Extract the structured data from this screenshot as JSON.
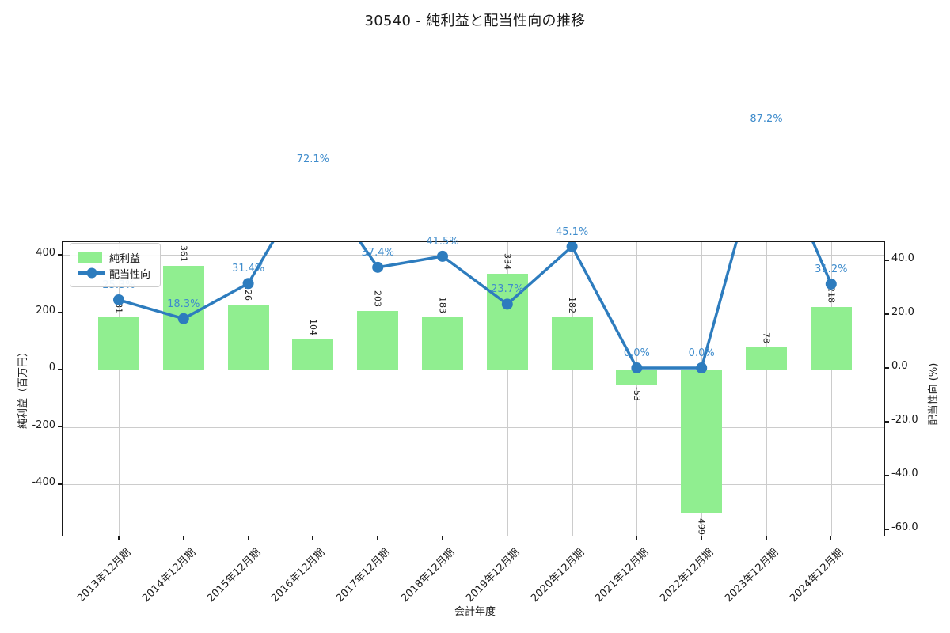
{
  "title": "30540 - 純利益と配当性向の推移",
  "xlabel": "会計年度",
  "ylabel_left": "純利益（百万円）",
  "ylabel_right": "配当性向 (%)",
  "legend": {
    "items": [
      {
        "label": "純利益",
        "marker": "bar-swatch"
      },
      {
        "label": "配当性向",
        "marker": "line-dot"
      }
    ]
  },
  "colors": {
    "bar": "#90ee90",
    "line": "#2d7cbe",
    "pct_text": "#3f8ccc",
    "grid": "#cccccc",
    "spine": "#1a1a1a"
  },
  "chart_data": {
    "type": "bar",
    "title": "30540 - 純利益と配当性向の推移",
    "xlabel": "会計年度",
    "categories": [
      "2013年12月期",
      "2014年12月期",
      "2015年12月期",
      "2016年12月期",
      "2017年12月期",
      "2018年12月期",
      "2019年12月期",
      "2020年12月期",
      "2021年12月期",
      "2022年12月期",
      "2023年12月期",
      "2024年12月期"
    ],
    "series": [
      {
        "name": "純利益",
        "type": "bar",
        "axis": "left",
        "color": "#90ee90",
        "values": [
          181,
          361,
          226,
          104,
          203,
          183,
          334,
          182,
          -53,
          -499,
          78,
          218
        ],
        "value_labels": [
          "181",
          "361",
          "226",
          "104",
          "203",
          "183",
          "334",
          "182",
          "-53",
          "-499",
          "78",
          "218"
        ]
      },
      {
        "name": "配当性向",
        "type": "line",
        "axis": "right",
        "color": "#2d7cbe",
        "values": [
          25.3,
          18.3,
          31.4,
          72.1,
          37.4,
          41.5,
          23.7,
          45.1,
          0.0,
          0.0,
          87.2,
          31.2
        ],
        "value_labels": [
          "25.3%",
          "18.3%",
          "31.4%",
          "72.1%",
          "37.4%",
          "41.5%",
          "23.7%",
          "45.1%",
          "0.0%",
          "0.0%",
          "87.2%",
          "31.2%"
        ]
      }
    ],
    "ylabel_left": "純利益（百万円）",
    "ylabel_right": "配当性向 (%)",
    "yticks_left": [
      400,
      200,
      0,
      -200,
      -400
    ],
    "ytick_labels_left": [
      "400",
      "200",
      "0",
      "-200",
      "-400"
    ],
    "yticks_right": [
      40.0,
      20.0,
      0.0,
      -20.0,
      -40.0,
      -60.0
    ],
    "ytick_labels_right": [
      "40.0",
      "20.0",
      "0.0",
      "-20.0",
      "-40.0",
      "-60.0"
    ],
    "ylim_left": [
      -585,
      444
    ],
    "ylim_right": [
      -62.9,
      46.8
    ],
    "grid": true,
    "legend_position": "upper left"
  }
}
